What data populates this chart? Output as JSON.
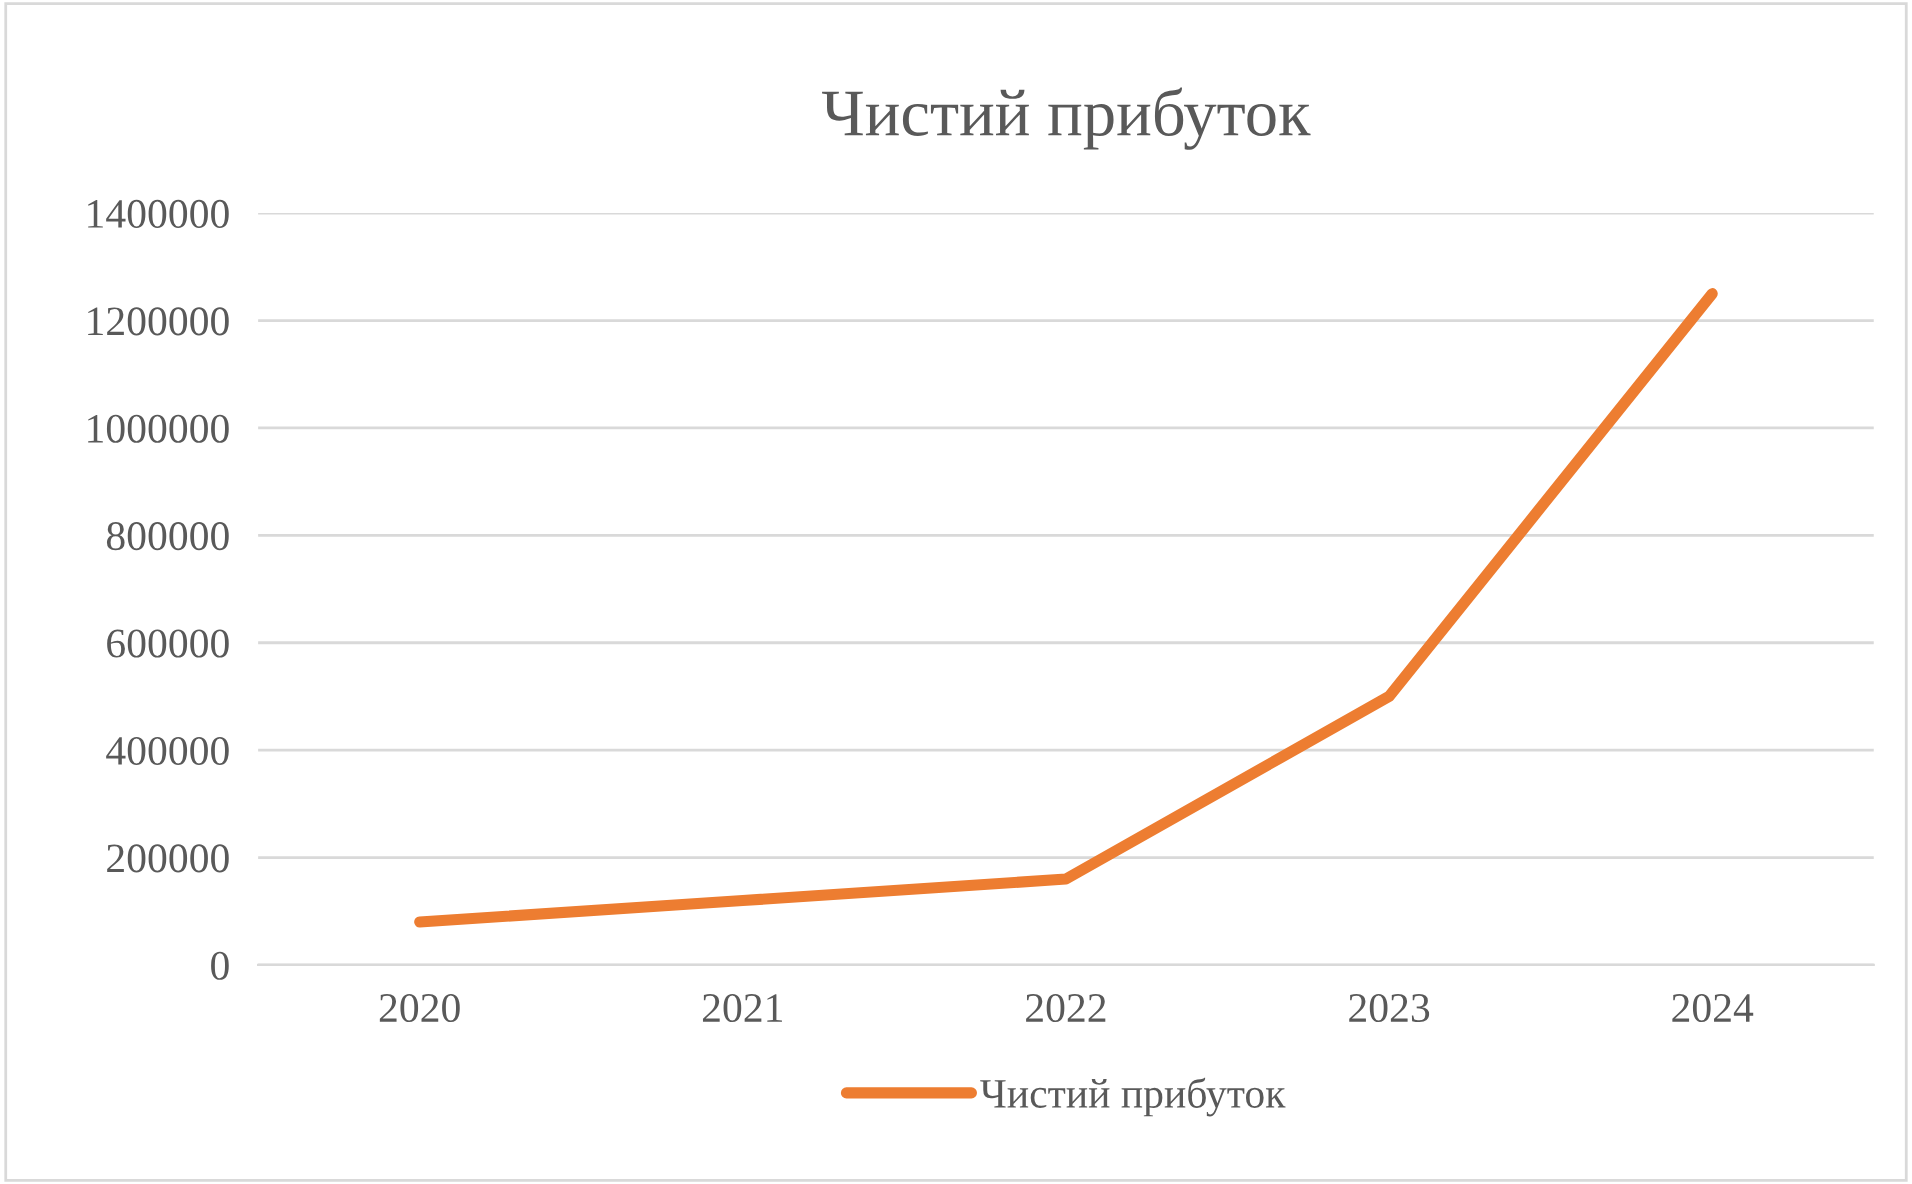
{
  "chart_data": {
    "type": "line",
    "title": "Чистий прибуток",
    "categories": [
      "2020",
      "2021",
      "2022",
      "2023",
      "2024"
    ],
    "series": [
      {
        "name": "Чистий прибуток",
        "color": "#ed7d31",
        "values": [
          80000,
          120000,
          160000,
          500000,
          1250000
        ]
      }
    ],
    "ylim": [
      0,
      1400000
    ],
    "yticks": [
      0,
      200000,
      400000,
      600000,
      800000,
      1000000,
      1200000,
      1400000
    ],
    "grid": "y",
    "legend": "bottom",
    "marker": "none",
    "line_style": "solid"
  }
}
